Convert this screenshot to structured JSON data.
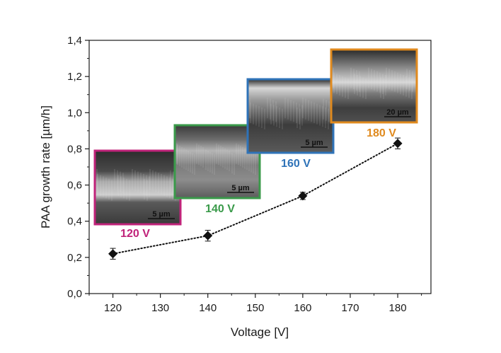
{
  "chart_data": {
    "type": "scatter",
    "xlabel": "Voltage [V]",
    "ylabel": "PAA growth rate  [µm/h]",
    "xlim": [
      115,
      187
    ],
    "ylim": [
      0.0,
      1.4
    ],
    "x_ticks": [
      "120",
      "130",
      "140",
      "150",
      "160",
      "170",
      "180"
    ],
    "y_ticks": [
      "0,0",
      "0,2",
      "0,4",
      "0,6",
      "0,8",
      "1,0",
      "1,2",
      "1,4"
    ],
    "grid": false,
    "line_style": "dotted",
    "marker": "diamond",
    "series": [
      {
        "x": [
          120,
          140,
          160,
          180
        ],
        "y": [
          0.22,
          0.32,
          0.54,
          0.83
        ],
        "error": [
          0.03,
          0.03,
          0.02,
          0.03
        ]
      }
    ],
    "insets": [
      {
        "label": "120 V",
        "color": "#c0237a",
        "scale_bar": "5 µm"
      },
      {
        "label": "140 V",
        "color": "#3a9a4a",
        "scale_bar": "5 µm"
      },
      {
        "label": "160 V",
        "color": "#2f73b8",
        "scale_bar": "5 µm"
      },
      {
        "label": "180 V",
        "color": "#e08a1e",
        "scale_bar": "20 µm"
      }
    ]
  }
}
